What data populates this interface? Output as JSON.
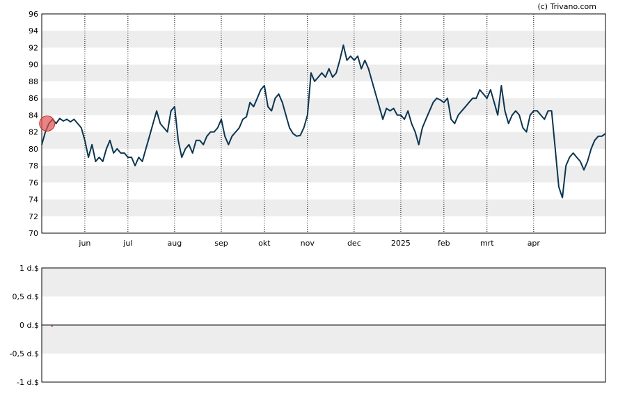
{
  "credit": "(c) Trivano.com",
  "chart_data": [
    {
      "type": "line",
      "title": "",
      "xlabel": "",
      "ylabel": "",
      "ylim": [
        70,
        96
      ],
      "yticks": [
        70,
        72,
        74,
        76,
        78,
        80,
        82,
        84,
        86,
        88,
        90,
        92,
        94,
        96
      ],
      "xticks": [
        {
          "label": "jun",
          "t": 12
        },
        {
          "label": "jul",
          "t": 24
        },
        {
          "label": "aug",
          "t": 37
        },
        {
          "label": "sep",
          "t": 50
        },
        {
          "label": "okt",
          "t": 62
        },
        {
          "label": "nov",
          "t": 74
        },
        {
          "label": "dec",
          "t": 87
        },
        {
          "label": "2025",
          "t": 100
        },
        {
          "label": "feb",
          "t": 112
        },
        {
          "label": "mrt",
          "t": 124
        },
        {
          "label": "apr",
          "t": 137
        }
      ],
      "xrange": [
        0,
        152
      ],
      "grid": true,
      "color": "#0b3550",
      "marker_color": "#e05050",
      "series": [
        {
          "values": [
            [
              0,
              80.5
            ],
            [
              1,
              82.0
            ],
            [
              2,
              83.0
            ],
            [
              3,
              83.5
            ],
            [
              4,
              83.0
            ],
            [
              5,
              83.6
            ],
            [
              6,
              83.3
            ],
            [
              7,
              83.5
            ],
            [
              8,
              83.2
            ],
            [
              9,
              83.5
            ],
            [
              10,
              83.0
            ],
            [
              11,
              82.5
            ],
            [
              12,
              81.0
            ],
            [
              13,
              79.0
            ],
            [
              14,
              80.5
            ],
            [
              15,
              78.5
            ],
            [
              16,
              79.0
            ],
            [
              17,
              78.5
            ],
            [
              18,
              80.0
            ],
            [
              19,
              81.0
            ],
            [
              20,
              79.5
            ],
            [
              21,
              80.0
            ],
            [
              22,
              79.5
            ],
            [
              23,
              79.5
            ],
            [
              24,
              79.0
            ],
            [
              25,
              79.0
            ],
            [
              26,
              78.0
            ],
            [
              27,
              79.0
            ],
            [
              28,
              78.5
            ],
            [
              29,
              80.0
            ],
            [
              30,
              81.5
            ],
            [
              31,
              83.0
            ],
            [
              32,
              84.5
            ],
            [
              33,
              83.0
            ],
            [
              34,
              82.5
            ],
            [
              35,
              82.0
            ],
            [
              36,
              84.5
            ],
            [
              37,
              85.0
            ],
            [
              38,
              81.0
            ],
            [
              39,
              79.0
            ],
            [
              40,
              80.0
            ],
            [
              41,
              80.5
            ],
            [
              42,
              79.5
            ],
            [
              43,
              81.0
            ],
            [
              44,
              81.0
            ],
            [
              45,
              80.5
            ],
            [
              46,
              81.5
            ],
            [
              47,
              82.0
            ],
            [
              48,
              82.0
            ],
            [
              49,
              82.5
            ],
            [
              50,
              83.5
            ],
            [
              51,
              81.5
            ],
            [
              52,
              80.5
            ],
            [
              53,
              81.5
            ],
            [
              54,
              82.0
            ],
            [
              55,
              82.5
            ],
            [
              56,
              83.5
            ],
            [
              57,
              83.8
            ],
            [
              58,
              85.5
            ],
            [
              59,
              85.0
            ],
            [
              60,
              86.0
            ],
            [
              61,
              87.0
            ],
            [
              62,
              87.5
            ],
            [
              63,
              85.0
            ],
            [
              64,
              84.5
            ],
            [
              65,
              86.0
            ],
            [
              66,
              86.5
            ],
            [
              67,
              85.5
            ],
            [
              68,
              84.0
            ],
            [
              69,
              82.5
            ],
            [
              70,
              81.8
            ],
            [
              71,
              81.5
            ],
            [
              72,
              81.6
            ],
            [
              73,
              82.5
            ],
            [
              74,
              84.0
            ],
            [
              75,
              89.0
            ],
            [
              76,
              88.0
            ],
            [
              77,
              88.5
            ],
            [
              78,
              89.0
            ],
            [
              79,
              88.5
            ],
            [
              80,
              89.5
            ],
            [
              81,
              88.5
            ],
            [
              82,
              89.0
            ],
            [
              83,
              90.5
            ],
            [
              84,
              92.3
            ],
            [
              85,
              90.5
            ],
            [
              86,
              91.0
            ],
            [
              87,
              90.5
            ],
            [
              88,
              91.0
            ],
            [
              89,
              89.5
            ],
            [
              90,
              90.5
            ],
            [
              91,
              89.5
            ],
            [
              92,
              88.0
            ],
            [
              93,
              86.5
            ],
            [
              94,
              85.0
            ],
            [
              95,
              83.5
            ],
            [
              96,
              84.8
            ],
            [
              97,
              84.5
            ],
            [
              98,
              84.8
            ],
            [
              99,
              84.0
            ],
            [
              100,
              84.0
            ],
            [
              101,
              83.5
            ],
            [
              102,
              84.5
            ],
            [
              103,
              83.0
            ],
            [
              104,
              82.0
            ],
            [
              105,
              80.5
            ],
            [
              106,
              82.5
            ],
            [
              107,
              83.5
            ],
            [
              108,
              84.5
            ],
            [
              109,
              85.5
            ],
            [
              110,
              86.0
            ],
            [
              111,
              85.8
            ],
            [
              112,
              85.5
            ],
            [
              113,
              86.0
            ],
            [
              114,
              83.5
            ],
            [
              115,
              83.0
            ],
            [
              116,
              84.0
            ],
            [
              117,
              84.5
            ],
            [
              118,
              85.0
            ],
            [
              119,
              85.5
            ],
            [
              120,
              86.0
            ],
            [
              121,
              86.0
            ],
            [
              122,
              87.0
            ],
            [
              123,
              86.5
            ],
            [
              124,
              86.0
            ],
            [
              125,
              87.0
            ],
            [
              126,
              85.5
            ],
            [
              127,
              84.0
            ],
            [
              128,
              87.5
            ],
            [
              129,
              84.5
            ],
            [
              130,
              83.0
            ],
            [
              131,
              84.0
            ],
            [
              132,
              84.5
            ],
            [
              133,
              84.0
            ],
            [
              134,
              82.5
            ],
            [
              135,
              82.0
            ],
            [
              136,
              84.0
            ],
            [
              137,
              84.5
            ],
            [
              138,
              84.5
            ],
            [
              139,
              84.0
            ],
            [
              140,
              83.5
            ],
            [
              141,
              84.5
            ],
            [
              142,
              84.5
            ],
            [
              143,
              80.0
            ],
            [
              144,
              75.5
            ],
            [
              145,
              74.2
            ],
            [
              146,
              78.0
            ],
            [
              147,
              79.0
            ],
            [
              148,
              79.5
            ],
            [
              149,
              79.0
            ],
            [
              150,
              78.5
            ],
            [
              151,
              77.5
            ],
            [
              152,
              78.5
            ],
            [
              153,
              80.0
            ],
            [
              154,
              81.0
            ],
            [
              155,
              81.5
            ],
            [
              156,
              81.5
            ],
            [
              157,
              81.8
            ]
          ]
        }
      ],
      "marker": {
        "t": 1.5,
        "value": 83.0
      }
    },
    {
      "type": "line",
      "title": "",
      "ylim": [
        -1,
        1
      ],
      "yticks": [
        {
          "label": "1 d.$",
          "v": 1
        },
        {
          "label": "0,5 d.$",
          "v": 0.5
        },
        {
          "label": "0 d.$",
          "v": 0
        },
        {
          "label": "-0,5 d.$",
          "v": -0.5
        },
        {
          "label": "-1 d.$",
          "v": -1
        }
      ],
      "grid": true,
      "series": [
        {
          "values": [
            [
              1.5,
              -0.02
            ]
          ]
        }
      ]
    }
  ]
}
